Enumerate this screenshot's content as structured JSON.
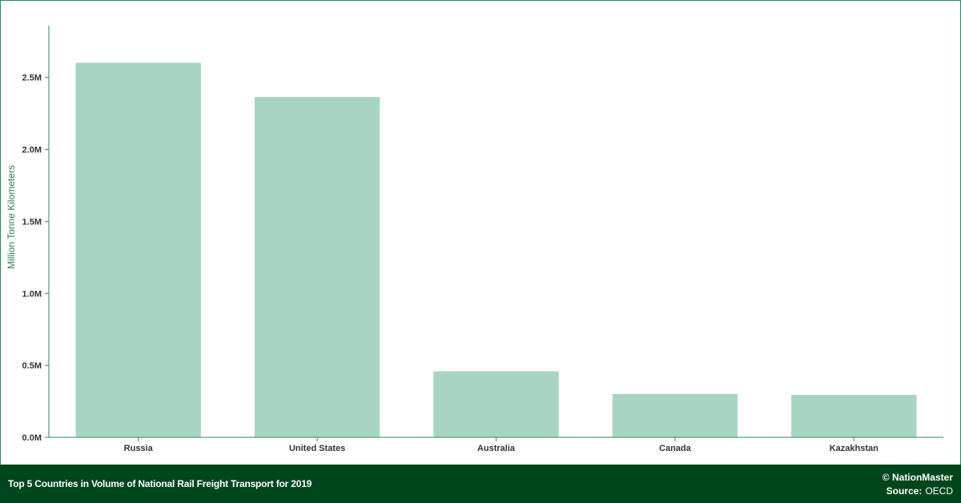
{
  "chart_data": {
    "type": "bar",
    "categories": [
      "Russia",
      "United States",
      "Australia",
      "Canada",
      "Kazakhstan"
    ],
    "values": [
      2602000,
      2364000,
      459000,
      301000,
      295000
    ],
    "yticks": [
      {
        "value": 0,
        "label": "0.0M"
      },
      {
        "value": 500000,
        "label": "0.5M"
      },
      {
        "value": 1000000,
        "label": "1.0M"
      },
      {
        "value": 1500000,
        "label": "1.5M"
      },
      {
        "value": 2000000,
        "label": "2.0M"
      },
      {
        "value": 2500000,
        "label": "2.5M"
      }
    ],
    "ylabel": "Million Tonne Kilometers",
    "ylim": [
      0,
      2860000
    ],
    "grid": false,
    "bar_color": "#a8d5c2",
    "axis_color": "#2e8b57"
  },
  "footer": {
    "title": "Top 5 Countries in Volume of National Rail Freight Transport for 2019",
    "brand": "© NationMaster",
    "source_label": "Source:",
    "source_value": "OECD"
  },
  "colors": {
    "footer_bg": "#00461d",
    "frame": "#2e8b57"
  }
}
